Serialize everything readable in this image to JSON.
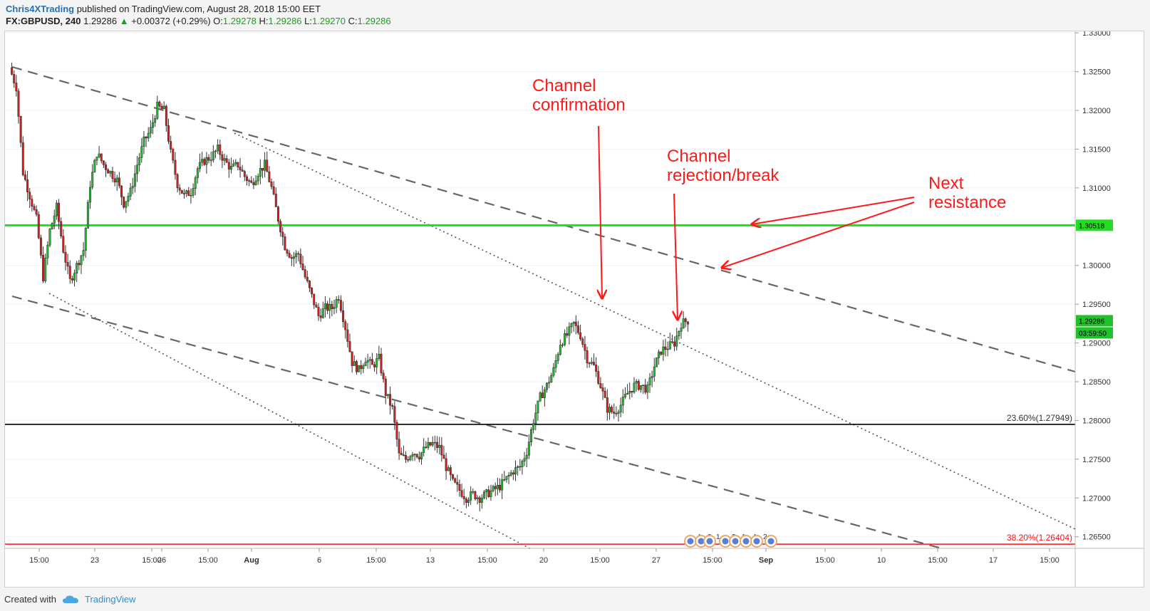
{
  "header": {
    "author": "Chris4XTrading",
    "published": "published on TradingView.com, August 28, 2018 15:00 EET",
    "symbol": "FX:GBPUSD, 240",
    "last": "1.29286",
    "change": "+0.00372 (+0.29%)",
    "o_label": "O:",
    "o_value": "1.29278",
    "h_label": "H:",
    "h_value": "1.29286",
    "l_label": "L:",
    "l_value": "1.29270",
    "c_label": "C:",
    "c_value": "1.29286"
  },
  "footer": {
    "created_with": "Created with",
    "brand": "TradingView"
  },
  "chart_data": {
    "type": "candlestick",
    "symbol": "GBPUSD",
    "timeframe": "240",
    "ylim": [
      1.2635,
      1.3302
    ],
    "y_ticks": [
      "1.33000",
      "1.32500",
      "1.32000",
      "1.31500",
      "1.31000",
      "1.30500",
      "1.30000",
      "1.29500",
      "1.29000",
      "1.28500",
      "1.28000",
      "1.27500",
      "1.27000",
      "1.26500"
    ],
    "x_ticks": [
      "15:00",
      "23",
      "15:00",
      "26",
      "15:00",
      "Aug",
      "6",
      "15:00",
      "13",
      "15:00",
      "20",
      "15:00",
      "27",
      "15:00",
      "Sep",
      "15:00",
      "10",
      "15:00",
      "17",
      "15:00"
    ],
    "price_path": [
      1.3255,
      1.323,
      1.312,
      1.309,
      1.306,
      1.2985,
      1.3045,
      1.3075,
      1.302,
      1.298,
      1.3,
      1.302,
      1.3105,
      1.3145,
      1.313,
      1.312,
      1.311,
      1.308,
      1.3095,
      1.313,
      1.316,
      1.3175,
      1.3205,
      1.32,
      1.3145,
      1.3105,
      1.309,
      1.3095,
      1.3125,
      1.3135,
      1.314,
      1.315,
      1.3135,
      1.3125,
      1.313,
      1.3115,
      1.3105,
      1.312,
      1.313,
      1.31,
      1.306,
      1.3025,
      1.301,
      1.3015,
      1.2985,
      1.296,
      1.2935,
      1.2945,
      1.2945,
      1.296,
      1.292,
      1.2875,
      1.2865,
      1.288,
      1.287,
      1.288,
      1.2835,
      1.2815,
      1.2755,
      1.275,
      1.276,
      1.2755,
      1.2765,
      1.277,
      1.2765,
      1.274,
      1.272,
      1.271,
      1.27,
      1.2705,
      1.27,
      1.2705,
      1.271,
      1.2715,
      1.2725,
      1.2735,
      1.274,
      1.276,
      1.28,
      1.283,
      1.2845,
      1.2865,
      1.29,
      1.291,
      1.2925,
      1.291,
      1.288,
      1.287,
      1.2845,
      1.2815,
      1.281,
      1.282,
      1.2835,
      1.2845,
      1.2845,
      1.284,
      1.287,
      1.289,
      1.2895,
      1.29,
      1.2925,
      1.2929
    ],
    "candles": {
      "up_color": "#21c12b",
      "down_color": "#e11b1b"
    },
    "horizontal_lines": [
      {
        "price": 1.30518,
        "label": "1.30518",
        "color": "#22dd22"
      },
      {
        "price": 1.27949,
        "label": "23.60%(1.27949)",
        "color": "#000000"
      },
      {
        "price": 1.26404,
        "label": "38.20%(1.26404)",
        "color": "#ff1111"
      }
    ],
    "last_price_label": "1.29286",
    "countdown_label": "03:59:50",
    "channel_lines": {
      "dashed": 3,
      "dotted": 2
    },
    "annotations": [
      {
        "text_lines": [
          "Channel",
          "confirmation"
        ],
        "color": "#ff1a1a"
      },
      {
        "text_lines": [
          "Channel",
          "rejection/break"
        ],
        "color": "#ff1a1a"
      },
      {
        "text_lines": [
          "Next",
          "resistance"
        ],
        "color": "#ff1a1a"
      }
    ],
    "event_markers": [
      "4",
      "2",
      "1",
      "3",
      "1",
      "4",
      "2"
    ]
  }
}
